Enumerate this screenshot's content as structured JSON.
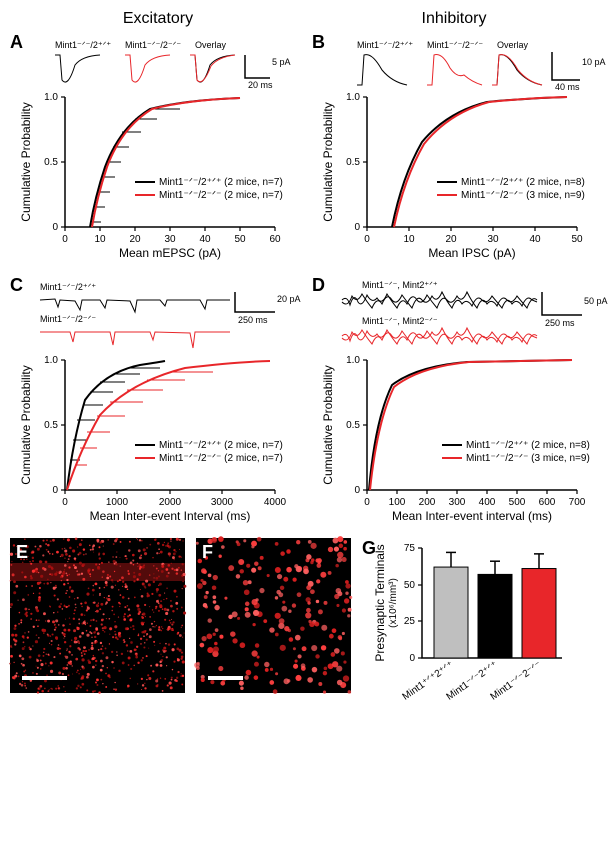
{
  "headers": {
    "excitatory": "Excitatory",
    "inhibitory": "Inhibitory"
  },
  "panels": {
    "A": "A",
    "B": "B",
    "C": "C",
    "D": "D",
    "E": "E",
    "F": "F",
    "G": "G"
  },
  "genotypes": {
    "wt": "Mint1⁻ᐟ⁻/2⁺ᐟ⁺",
    "ko": "Mint1⁻ᐟ⁻/2⁻ᐟ⁻",
    "overlay": "Overlay",
    "wt_alt": "Mint1⁻ᐟ⁻, Mint2⁺ᐟ⁺",
    "ko_alt": "Mint1⁻ᐟ⁻, Mint2⁻ᐟ⁻"
  },
  "colors": {
    "wt": "#000000",
    "ko": "#e8262a",
    "bar_wt_gray": "#bfbfbf"
  },
  "A": {
    "trace_scale_y": "5 pA",
    "trace_scale_x": "20 ms",
    "xlabel": "Mean mEPSC (pA)",
    "ylabel": "Cumulative Probability",
    "xlim": [
      0,
      60
    ],
    "ylim": [
      0,
      1.0
    ],
    "xticks": [
      0,
      10,
      20,
      30,
      40,
      50,
      60
    ],
    "yticks": [
      0,
      0.5,
      1.0
    ],
    "legend_wt": "Mint1⁻ᐟ⁻/2⁺ᐟ⁺ (2 mice, n=7)",
    "legend_ko": "Mint1⁻ᐟ⁻/2⁻ᐟ⁻ (2 mice, n=7)"
  },
  "B": {
    "trace_scale_y": "10 pA",
    "trace_scale_x": "40 ms",
    "xlabel": "Mean IPSC (pA)",
    "ylabel": "Cumulative Probability",
    "xlim": [
      0,
      50
    ],
    "ylim": [
      0,
      1.0
    ],
    "xticks": [
      0,
      10,
      20,
      30,
      40,
      50
    ],
    "yticks": [
      0,
      0.5,
      1.0
    ],
    "legend_wt": "Mint1⁻ᐟ⁻/2⁺ᐟ⁺ (2 mice, n=8)",
    "legend_ko": "Mint1⁻ᐟ⁻/2⁻ᐟ⁻ (3 mice, n=9)"
  },
  "C": {
    "trace_scale_y": "20 pA",
    "trace_scale_x": "250 ms",
    "xlabel": "Mean Inter-event Interval (ms)",
    "ylabel": "Cumulative Probability",
    "xlim": [
      0,
      4000
    ],
    "ylim": [
      0,
      1.0
    ],
    "xticks": [
      0,
      1000,
      2000,
      3000,
      4000
    ],
    "yticks": [
      0,
      0.5,
      1.0
    ],
    "legend_wt": "Mint1⁻ᐟ⁻/2⁺ᐟ⁺ (2 mice, n=7)",
    "legend_ko": "Mint1⁻ᐟ⁻/2⁻ᐟ⁻ (2 mice, n=7)"
  },
  "D": {
    "trace_scale_y": "50 pA",
    "trace_scale_x": "250 ms",
    "xlabel": "Mean Inter-event interval (ms)",
    "ylabel": "Cumulative Probability",
    "xlim": [
      0,
      700
    ],
    "ylim": [
      0,
      1.0
    ],
    "xticks": [
      0,
      100,
      200,
      300,
      400,
      500,
      600,
      700
    ],
    "yticks": [
      0,
      0.5,
      1.0
    ],
    "legend_wt": "Mint1⁻ᐟ⁻/2⁺ᐟ⁺ (2 mice, n=8)",
    "legend_ko": "Mint1⁻ᐟ⁻/2⁻ᐟ⁻ (3 mice, n=9)"
  },
  "G": {
    "ylabel_line1": "Presynaptic Terminals",
    "ylabel_line2": "(x10⁶/mm³)",
    "ylim": [
      0,
      75
    ],
    "yticks": [
      0,
      25,
      50,
      75
    ],
    "bars": [
      {
        "label": "Mint1⁺ᐟ⁺2⁺ᐟ⁺",
        "value": 62,
        "err": 10,
        "color": "#bfbfbf"
      },
      {
        "label": "Mint1⁻ᐟ⁻2⁺ᐟ⁺",
        "value": 57,
        "err": 9,
        "color": "#000000"
      },
      {
        "label": "Mint1⁻ᐟ⁻2⁻ᐟ⁻",
        "value": 61,
        "err": 10,
        "color": "#e8262a"
      }
    ]
  }
}
